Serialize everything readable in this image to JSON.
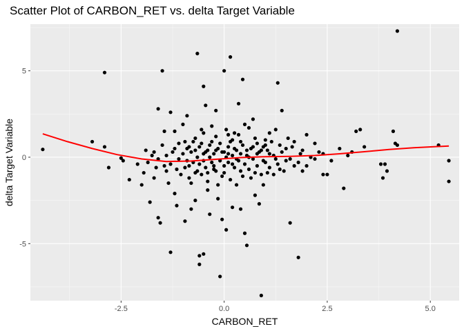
{
  "chart_data": {
    "type": "scatter",
    "title": "Scatter Plot of CARBON_RET vs. delta Target Variable",
    "xlabel": "CARBON_RET",
    "ylabel": "delta Target Variable",
    "xlim": [
      -4.7,
      5.7
    ],
    "ylim": [
      -8.3,
      7.7
    ],
    "x_ticks": [
      -2.5,
      0.0,
      2.5,
      5.0
    ],
    "x_tick_labels": [
      "-2.5",
      "0.0",
      "2.5",
      "5.0"
    ],
    "y_ticks": [
      -5,
      0,
      5
    ],
    "y_tick_labels": [
      "-5",
      "0",
      "5"
    ],
    "grid": true,
    "panel_background": "#ebebeb",
    "point_color": "#000000",
    "smooth_color": "#ff0000",
    "points": [
      [
        -4.4,
        0.45
      ],
      [
        -3.2,
        0.9
      ],
      [
        -2.9,
        4.9
      ],
      [
        -2.9,
        0.6
      ],
      [
        -2.8,
        -0.6
      ],
      [
        -2.5,
        -0.05
      ],
      [
        -2.45,
        -0.2
      ],
      [
        -2.3,
        -1.3
      ],
      [
        -2.1,
        -0.4
      ],
      [
        -2.0,
        -1.6
      ],
      [
        -1.95,
        -0.9
      ],
      [
        -1.9,
        0.4
      ],
      [
        -1.85,
        -0.3
      ],
      [
        -1.8,
        -2.6
      ],
      [
        -1.75,
        0.1
      ],
      [
        -1.7,
        -1.2
      ],
      [
        -1.65,
        -0.6
      ],
      [
        -1.6,
        -3.5
      ],
      [
        -1.55,
        -3.8
      ],
      [
        -1.6,
        2.8
      ],
      [
        -1.5,
        5.0
      ],
      [
        -1.45,
        1.5
      ],
      [
        -1.4,
        -0.8
      ],
      [
        -1.35,
        -1.5
      ],
      [
        -1.3,
        -5.5
      ],
      [
        -1.3,
        2.6
      ],
      [
        -1.25,
        0.3
      ],
      [
        -1.2,
        1.5
      ],
      [
        -1.2,
        -2.1
      ],
      [
        -1.15,
        -2.8
      ],
      [
        -1.1,
        0.8
      ],
      [
        -1.05,
        -1.0
      ],
      [
        -1.0,
        1.9
      ],
      [
        -0.95,
        -3.7
      ],
      [
        -0.9,
        2.4
      ],
      [
        -0.85,
        -0.5
      ],
      [
        -0.8,
        -3.0
      ],
      [
        -0.75,
        0.9
      ],
      [
        -0.7,
        -2.5
      ],
      [
        -0.65,
        6.0
      ],
      [
        -0.6,
        -6.2
      ],
      [
        -0.6,
        -5.7
      ],
      [
        -0.55,
        1.6
      ],
      [
        -0.5,
        4.1
      ],
      [
        -0.5,
        -5.6
      ],
      [
        -0.45,
        3.0
      ],
      [
        -0.4,
        -1.9
      ],
      [
        -0.35,
        -3.3
      ],
      [
        -0.3,
        1.8
      ],
      [
        -0.25,
        -0.7
      ],
      [
        -0.2,
        2.7
      ],
      [
        -0.15,
        -2.4
      ],
      [
        -0.1,
        -6.9
      ],
      [
        -0.05,
        -3.6
      ],
      [
        0.0,
        5.0
      ],
      [
        0.05,
        -4.2
      ],
      [
        0.1,
        1.3
      ],
      [
        0.15,
        5.8
      ],
      [
        0.2,
        -2.9
      ],
      [
        0.25,
        0.5
      ],
      [
        0.3,
        -1.6
      ],
      [
        0.35,
        3.1
      ],
      [
        0.4,
        -3.0
      ],
      [
        0.45,
        4.5
      ],
      [
        0.5,
        -4.4
      ],
      [
        0.55,
        -5.1
      ],
      [
        0.6,
        1.7
      ],
      [
        0.65,
        -1.2
      ],
      [
        0.7,
        2.2
      ],
      [
        0.75,
        -2.2
      ],
      [
        0.8,
        0.8
      ],
      [
        0.85,
        -2.7
      ],
      [
        0.9,
        -8.0
      ],
      [
        0.95,
        -1.6
      ],
      [
        1.0,
        1.0
      ],
      [
        1.05,
        -0.9
      ],
      [
        1.1,
        1.4
      ],
      [
        1.2,
        -1.0
      ],
      [
        1.25,
        1.6
      ],
      [
        1.3,
        4.3
      ],
      [
        1.35,
        -0.7
      ],
      [
        1.4,
        2.7
      ],
      [
        1.5,
        -0.2
      ],
      [
        1.55,
        1.1
      ],
      [
        1.6,
        -3.8
      ],
      [
        1.65,
        0.6
      ],
      [
        1.7,
        -0.5
      ],
      [
        1.8,
        -5.8
      ],
      [
        1.85,
        0.2
      ],
      [
        1.9,
        -0.8
      ],
      [
        2.0,
        1.3
      ],
      [
        2.1,
        0.0
      ],
      [
        2.2,
        0.8
      ],
      [
        2.3,
        0.3
      ],
      [
        2.4,
        -1.0
      ],
      [
        2.5,
        -1.0
      ],
      [
        2.6,
        -0.2
      ],
      [
        2.8,
        0.5
      ],
      [
        2.9,
        -1.8
      ],
      [
        3.0,
        0.1
      ],
      [
        3.1,
        0.3
      ],
      [
        3.2,
        1.5
      ],
      [
        3.3,
        1.6
      ],
      [
        3.4,
        0.6
      ],
      [
        3.8,
        -0.4
      ],
      [
        3.85,
        -1.2
      ],
      [
        3.9,
        -0.4
      ],
      [
        3.95,
        -0.8
      ],
      [
        4.1,
        1.5
      ],
      [
        4.15,
        0.8
      ],
      [
        4.2,
        7.3
      ],
      [
        4.2,
        0.7
      ],
      [
        5.2,
        0.7
      ],
      [
        5.45,
        -0.2
      ],
      [
        5.45,
        -1.4
      ],
      [
        -1.4,
        0.1
      ],
      [
        -1.3,
        -0.4
      ],
      [
        -1.1,
        -0.1
      ],
      [
        -1.0,
        0.2
      ],
      [
        -0.95,
        -0.6
      ],
      [
        -0.9,
        0.5
      ],
      [
        -0.85,
        -1.2
      ],
      [
        -0.8,
        0.3
      ],
      [
        -0.75,
        -0.3
      ],
      [
        -0.7,
        1.1
      ],
      [
        -0.7,
        -0.9
      ],
      [
        -0.65,
        0.0
      ],
      [
        -0.6,
        0.6
      ],
      [
        -0.6,
        -0.4
      ],
      [
        -0.55,
        -1.0
      ],
      [
        -0.5,
        0.2
      ],
      [
        -0.5,
        1.4
      ],
      [
        -0.45,
        -0.6
      ],
      [
        -0.4,
        0.4
      ],
      [
        -0.4,
        -1.4
      ],
      [
        -0.35,
        0.0
      ],
      [
        -0.3,
        0.9
      ],
      [
        -0.3,
        -0.3
      ],
      [
        -0.25,
        0.2
      ],
      [
        -0.2,
        -0.8
      ],
      [
        -0.2,
        1.2
      ],
      [
        -0.15,
        0.5
      ],
      [
        -0.1,
        -0.2
      ],
      [
        -0.1,
        0.8
      ],
      [
        -0.05,
        -1.1
      ],
      [
        0.0,
        0.3
      ],
      [
        0.0,
        -0.5
      ],
      [
        0.05,
        1.6
      ],
      [
        0.05,
        0.0
      ],
      [
        0.1,
        -0.3
      ],
      [
        0.1,
        0.6
      ],
      [
        0.15,
        -1.3
      ],
      [
        0.2,
        0.1
      ],
      [
        0.2,
        1.0
      ],
      [
        0.25,
        -0.6
      ],
      [
        0.3,
        0.4
      ],
      [
        0.3,
        -0.1
      ],
      [
        0.35,
        1.3
      ],
      [
        0.4,
        -0.8
      ],
      [
        0.4,
        0.2
      ],
      [
        0.45,
        0.7
      ],
      [
        0.5,
        -0.4
      ],
      [
        0.5,
        1.9
      ],
      [
        0.55,
        0.1
      ],
      [
        0.6,
        -0.7
      ],
      [
        0.65,
        0.5
      ],
      [
        0.7,
        -0.1
      ],
      [
        0.75,
        1.1
      ],
      [
        0.8,
        -0.5
      ],
      [
        0.85,
        0.3
      ],
      [
        0.9,
        -1.0
      ],
      [
        0.95,
        0.6
      ],
      [
        1.0,
        -0.3
      ],
      [
        1.05,
        0.4
      ],
      [
        1.1,
        -0.6
      ],
      [
        1.15,
        0.9
      ],
      [
        1.2,
        0.1
      ],
      [
        1.3,
        -0.4
      ],
      [
        1.35,
        0.7
      ],
      [
        1.45,
        -0.8
      ],
      [
        1.5,
        0.5
      ],
      [
        1.6,
        -0.1
      ],
      [
        1.7,
        0.9
      ],
      [
        1.8,
        -0.3
      ],
      [
        1.9,
        0.4
      ],
      [
        2.0,
        -0.5
      ],
      [
        2.2,
        -0.1
      ],
      [
        2.4,
        0.2
      ],
      [
        -1.7,
        0.3
      ],
      [
        -1.6,
        -0.1
      ],
      [
        -1.5,
        0.7
      ],
      [
        -1.45,
        -0.5
      ],
      [
        -1.2,
        0.5
      ],
      [
        -1.15,
        -0.7
      ],
      [
        -0.95,
        0.9
      ],
      [
        -0.9,
        -0.2
      ],
      [
        -0.85,
        0.6
      ],
      [
        -0.8,
        -1.5
      ],
      [
        -0.7,
        0.4
      ],
      [
        -0.65,
        -0.8
      ],
      [
        -0.55,
        0.8
      ],
      [
        -0.5,
        -0.2
      ],
      [
        -0.45,
        0.3
      ],
      [
        -0.4,
        -0.9
      ],
      [
        -0.35,
        0.7
      ],
      [
        -0.25,
        -0.5
      ],
      [
        -0.2,
        0.4
      ],
      [
        -0.15,
        -1.6
      ],
      [
        -0.05,
        0.3
      ],
      [
        0.0,
        -0.9
      ],
      [
        0.1,
        0.2
      ],
      [
        0.15,
        0.9
      ],
      [
        0.2,
        -0.4
      ],
      [
        0.25,
        1.4
      ],
      [
        0.35,
        -0.2
      ],
      [
        0.4,
        0.9
      ],
      [
        0.45,
        -1.1
      ],
      [
        0.55,
        0.4
      ],
      [
        0.6,
        0.0
      ],
      [
        0.7,
        0.6
      ],
      [
        0.75,
        -0.9
      ],
      [
        0.8,
        0.2
      ],
      [
        0.9,
        0.4
      ],
      [
        0.95,
        -0.2
      ],
      [
        1.0,
        0.7
      ],
      [
        1.1,
        0.2
      ],
      [
        1.25,
        -0.1
      ],
      [
        1.4,
        0.3
      ]
    ],
    "smooth_curve": [
      [
        -4.4,
        1.35
      ],
      [
        -3.8,
        0.9
      ],
      [
        -3.2,
        0.5
      ],
      [
        -2.6,
        0.15
      ],
      [
        -2.0,
        -0.1
      ],
      [
        -1.4,
        -0.25
      ],
      [
        -0.8,
        -0.22
      ],
      [
        -0.2,
        -0.12
      ],
      [
        0.4,
        -0.02
      ],
      [
        1.0,
        0.03
      ],
      [
        1.6,
        0.05
      ],
      [
        2.2,
        0.1
      ],
      [
        2.8,
        0.2
      ],
      [
        3.4,
        0.32
      ],
      [
        4.0,
        0.45
      ],
      [
        4.6,
        0.55
      ],
      [
        5.45,
        0.65
      ]
    ]
  }
}
